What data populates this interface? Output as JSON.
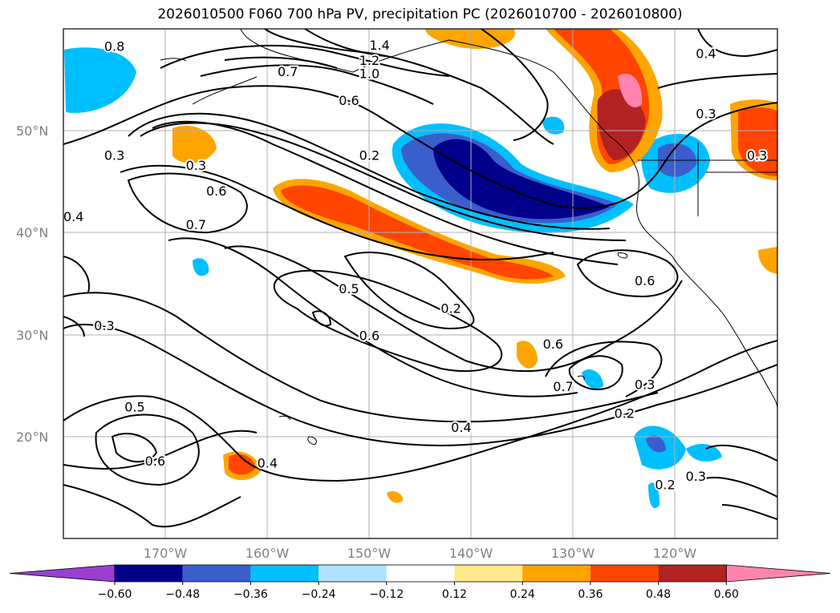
{
  "title": "2026010500 F060 700 hPa PV, precipitation PC (2026010700 - 2026010800)",
  "map": {
    "lon_range": [
      -181,
      -111
    ],
    "lat_range": [
      10,
      60
    ],
    "lat_ticks": [
      "50°N",
      "40°N",
      "30°N",
      "20°N"
    ],
    "lon_ticks": [
      "170°W",
      "160°W",
      "150°W",
      "140°W",
      "130°W",
      "120°W"
    ]
  },
  "contour_labels": [
    {
      "text": "0.8",
      "lon": -176,
      "lat": 58.2
    },
    {
      "text": "1.4",
      "lon": -150,
      "lat": 58.3
    },
    {
      "text": "1.2",
      "lon": -151,
      "lat": 56.8
    },
    {
      "text": "1.0",
      "lon": -151,
      "lat": 55.5
    },
    {
      "text": "0.7",
      "lon": -159,
      "lat": 55.7
    },
    {
      "text": "0.6",
      "lon": -153,
      "lat": 52.9
    },
    {
      "text": "0.4",
      "lon": -118,
      "lat": 57.5
    },
    {
      "text": "0.3",
      "lon": -118,
      "lat": 51.6
    },
    {
      "text": "0.3",
      "lon": -113,
      "lat": 47.5
    },
    {
      "text": "0.3",
      "lon": -176,
      "lat": 47.5
    },
    {
      "text": "0.3",
      "lon": -168,
      "lat": 46.5
    },
    {
      "text": "0.2",
      "lon": -151,
      "lat": 47.5
    },
    {
      "text": "0.6",
      "lon": -166,
      "lat": 44.0
    },
    {
      "text": "0.7",
      "lon": -168,
      "lat": 40.7
    },
    {
      "text": "0.4",
      "lon": -180,
      "lat": 41.5
    },
    {
      "text": "0.5",
      "lon": -153,
      "lat": 34.4
    },
    {
      "text": "0.2",
      "lon": -143,
      "lat": 32.5
    },
    {
      "text": "0.6",
      "lon": -151,
      "lat": 29.8
    },
    {
      "text": "0.6",
      "lon": -124,
      "lat": 35.2
    },
    {
      "text": "0.3",
      "lon": -177,
      "lat": 30.8
    },
    {
      "text": "0.6",
      "lon": -133,
      "lat": 29.0
    },
    {
      "text": "0.7",
      "lon": -132,
      "lat": 24.8
    },
    {
      "text": "0.3",
      "lon": -124,
      "lat": 25.0
    },
    {
      "text": "0.2",
      "lon": -126,
      "lat": 22.2
    },
    {
      "text": "0.4",
      "lon": -142,
      "lat": 20.8
    },
    {
      "text": "0.5",
      "lon": -174,
      "lat": 22.8
    },
    {
      "text": "0.6",
      "lon": -172,
      "lat": 17.5
    },
    {
      "text": "0.4",
      "lon": -161,
      "lat": 17.3
    },
    {
      "text": "0.2",
      "lon": -122,
      "lat": 15.2
    },
    {
      "text": "0.3",
      "lon": -119,
      "lat": 16.0
    }
  ],
  "colorbar": {
    "labels": [
      "−0.60",
      "−0.48",
      "−0.36",
      "−0.24",
      "−0.12",
      "0.12",
      "0.24",
      "0.36",
      "0.48",
      "0.60"
    ],
    "colors": [
      "#9a3fd0",
      "#00008b",
      "#3a5fcd",
      "#00bfff",
      "#b0e2ff",
      "#ffffff",
      "#ffe98a",
      "#ffa500",
      "#ff4500",
      "#b22222",
      "#ff85b0"
    ]
  }
}
